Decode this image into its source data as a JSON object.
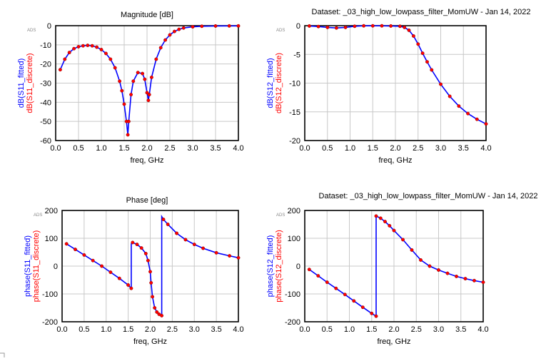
{
  "chart_data": [
    {
      "type": "line",
      "title": "Magnitude [dB]",
      "xlabel": "freq, GHz",
      "ylabel_lines": [
        "dB(S11_fitted)",
        "dB(S11_discrete)"
      ],
      "watermark": "ADS",
      "xlim": [
        0.0,
        4.0
      ],
      "ylim": [
        -60,
        0
      ],
      "xticks": [
        "0.0",
        "0.5",
        "1.0",
        "1.5",
        "2.0",
        "2.5",
        "3.0",
        "3.5",
        "4.0"
      ],
      "yticks": [
        "0",
        "-10",
        "-20",
        "-30",
        "-40",
        "-50",
        "-60"
      ],
      "grid": true,
      "series": [
        {
          "name": "dB(S11_fitted)",
          "color": "#0000ff",
          "style": "line",
          "x": [
            0.1,
            0.2,
            0.3,
            0.4,
            0.5,
            0.6,
            0.7,
            0.8,
            0.9,
            1.0,
            1.1,
            1.2,
            1.3,
            1.4,
            1.45,
            1.5,
            1.55,
            1.58,
            1.6,
            1.65,
            1.7,
            1.8,
            1.9,
            1.95,
            2.0,
            2.03,
            2.05,
            2.1,
            2.2,
            2.3,
            2.4,
            2.5,
            2.6,
            2.7,
            2.8,
            3.0,
            3.2,
            3.5,
            3.8,
            4.0
          ],
          "y": [
            -23,
            -17.5,
            -14,
            -12,
            -11,
            -10.5,
            -10.3,
            -10.5,
            -11.2,
            -12.5,
            -14.5,
            -17.5,
            -22,
            -29,
            -34,
            -41,
            -50,
            -57,
            -50,
            -36,
            -29,
            -24.5,
            -25,
            -28,
            -35,
            -39,
            -36,
            -27,
            -17.5,
            -11.5,
            -7.5,
            -4.8,
            -3,
            -1.9,
            -1.2,
            -0.6,
            -0.3,
            -0.15,
            -0.1,
            -0.1
          ]
        },
        {
          "name": "dB(S11_discrete)",
          "color": "#ff0000",
          "style": "markers",
          "x": [
            0.1,
            0.2,
            0.3,
            0.4,
            0.5,
            0.6,
            0.7,
            0.8,
            0.9,
            1.0,
            1.1,
            1.2,
            1.3,
            1.4,
            1.45,
            1.5,
            1.55,
            1.58,
            1.6,
            1.65,
            1.7,
            1.8,
            1.9,
            1.95,
            2.0,
            2.03,
            2.05,
            2.1,
            2.2,
            2.3,
            2.4,
            2.5,
            2.6,
            2.7,
            2.8,
            3.0,
            3.2,
            3.5,
            3.8,
            4.0
          ],
          "y": [
            -23,
            -17.5,
            -14,
            -12,
            -11,
            -10.5,
            -10.3,
            -10.5,
            -11.2,
            -12.5,
            -14.5,
            -17.5,
            -22,
            -29,
            -34,
            -41,
            -50,
            -57,
            -50,
            -36,
            -29,
            -24.5,
            -25,
            -28,
            -35,
            -39,
            -36,
            -27,
            -17.5,
            -11.5,
            -7.5,
            -4.8,
            -3,
            -1.9,
            -1.2,
            -0.6,
            -0.3,
            -0.15,
            -0.1,
            -0.1
          ]
        }
      ]
    },
    {
      "type": "line",
      "title": "Dataset: _03_high_low_lowpass_filter_MomUW - Jan 14, 2022",
      "xlabel": "freq, GHz",
      "ylabel_lines": [
        "dB(S12_fitted)",
        "dB(S12_discrete)"
      ],
      "watermark": "ADS",
      "xlim": [
        0.0,
        4.0
      ],
      "ylim": [
        -20,
        0
      ],
      "xticks": [
        "0.0",
        "0.5",
        "1.0",
        "1.5",
        "2.0",
        "2.5",
        "3.0",
        "3.5",
        "4.0"
      ],
      "yticks": [
        "0",
        "-5",
        "-10",
        "-15",
        "-20"
      ],
      "grid": true,
      "series": [
        {
          "name": "dB(S12_fitted)",
          "color": "#0000ff",
          "style": "line",
          "x": [
            0.1,
            0.3,
            0.5,
            0.7,
            0.9,
            1.1,
            1.3,
            1.5,
            1.7,
            1.9,
            2.1,
            2.2,
            2.3,
            2.4,
            2.5,
            2.6,
            2.7,
            2.8,
            3.0,
            3.2,
            3.4,
            3.6,
            3.8,
            4.0
          ],
          "y": [
            -0.05,
            -0.15,
            -0.3,
            -0.4,
            -0.3,
            -0.1,
            -0.02,
            -0.02,
            -0.03,
            -0.05,
            -0.1,
            -0.3,
            -0.8,
            -1.8,
            -3.2,
            -4.8,
            -6.3,
            -7.7,
            -10.2,
            -12.3,
            -14,
            -15.3,
            -16.3,
            -17.1
          ]
        },
        {
          "name": "dB(S12_discrete)",
          "color": "#ff0000",
          "style": "markers",
          "x": [
            0.1,
            0.3,
            0.5,
            0.7,
            0.9,
            1.1,
            1.3,
            1.5,
            1.7,
            1.9,
            2.1,
            2.2,
            2.3,
            2.4,
            2.5,
            2.6,
            2.7,
            2.8,
            3.0,
            3.2,
            3.4,
            3.6,
            3.8,
            4.0
          ],
          "y": [
            -0.05,
            -0.15,
            -0.3,
            -0.4,
            -0.3,
            -0.1,
            -0.02,
            -0.02,
            -0.03,
            -0.05,
            -0.1,
            -0.3,
            -0.8,
            -1.8,
            -3.2,
            -4.8,
            -6.3,
            -7.7,
            -10.2,
            -12.3,
            -14,
            -15.3,
            -16.3,
            -17.1
          ]
        }
      ]
    },
    {
      "type": "line",
      "title": "Phase [deg]",
      "xlabel": "freq, GHz",
      "ylabel_lines": [
        "phase(S11_fitted)",
        "phase(S11_discrete)"
      ],
      "watermark": "ADS",
      "xlim": [
        0.0,
        4.0
      ],
      "ylim": [
        -200,
        200
      ],
      "xticks": [
        "0.0",
        "0.5",
        "1.0",
        "1.5",
        "2.0",
        "2.5",
        "3.0",
        "3.5",
        "4.0"
      ],
      "yticks": [
        "200",
        "100",
        "0",
        "-100",
        "-200"
      ],
      "grid": true,
      "series": [
        {
          "name": "phase(S11_fitted)",
          "color": "#0000ff",
          "style": "line",
          "x": [
            0.1,
            0.3,
            0.5,
            0.7,
            0.9,
            1.1,
            1.3,
            1.5,
            1.57,
            1.57,
            1.6,
            1.7,
            1.8,
            1.9,
            1.95,
            2.0,
            2.02,
            2.05,
            2.1,
            2.15,
            2.2,
            2.26,
            2.26,
            2.3,
            2.4,
            2.6,
            2.8,
            3.0,
            3.2,
            3.5,
            3.8,
            4.0
          ],
          "y": [
            80,
            60,
            40,
            20,
            0,
            -22,
            -44,
            -68,
            -80,
            80,
            85,
            78,
            65,
            45,
            20,
            -20,
            -60,
            -110,
            -150,
            -165,
            -173,
            -178,
            178,
            168,
            150,
            118,
            95,
            78,
            64,
            48,
            37,
            30
          ]
        },
        {
          "name": "phase(S11_discrete)",
          "color": "#ff0000",
          "style": "markers",
          "x": [
            0.1,
            0.3,
            0.5,
            0.7,
            0.9,
            1.1,
            1.3,
            1.5,
            1.57,
            1.6,
            1.7,
            1.8,
            1.9,
            1.95,
            2.0,
            2.02,
            2.05,
            2.1,
            2.15,
            2.2,
            2.26,
            2.3,
            2.4,
            2.6,
            2.8,
            3.0,
            3.2,
            3.5,
            3.8,
            4.0
          ],
          "y": [
            80,
            60,
            40,
            20,
            0,
            -22,
            -44,
            -68,
            -80,
            85,
            78,
            65,
            45,
            20,
            -20,
            -60,
            -110,
            -150,
            -165,
            -173,
            -178,
            168,
            150,
            118,
            95,
            78,
            64,
            48,
            37,
            30
          ]
        }
      ]
    },
    {
      "type": "line",
      "title": "Dataset: _03_high_low_lowpass_filter_MomUW - Jan 14, 2022",
      "xlabel": "freq, GHz",
      "ylabel_lines": [
        "phase(S12_fitted)",
        "phase(S12_discrete)"
      ],
      "watermark": "ADS",
      "xlim": [
        0.0,
        4.0
      ],
      "ylim": [
        -200,
        200
      ],
      "xticks": [
        "0.0",
        "0.5",
        "1.0",
        "1.5",
        "2.0",
        "2.5",
        "3.0",
        "3.5",
        "4.0"
      ],
      "yticks": [
        "200",
        "100",
        "0",
        "-100",
        "-200"
      ],
      "grid": true,
      "series": [
        {
          "name": "phase(S12_fitted)",
          "color": "#0000ff",
          "style": "line",
          "x": [
            0.1,
            0.3,
            0.5,
            0.7,
            0.9,
            1.1,
            1.3,
            1.5,
            1.6,
            1.6,
            1.7,
            1.8,
            1.9,
            2.0,
            2.2,
            2.4,
            2.6,
            2.8,
            3.0,
            3.2,
            3.4,
            3.6,
            3.8,
            4.0
          ],
          "y": [
            -12,
            -35,
            -58,
            -80,
            -102,
            -125,
            -148,
            -170,
            -180,
            180,
            172,
            160,
            145,
            128,
            95,
            58,
            22,
            0,
            -14,
            -26,
            -37,
            -45,
            -52,
            -58
          ]
        },
        {
          "name": "phase(S12_discrete)",
          "color": "#ff0000",
          "style": "markers",
          "x": [
            0.1,
            0.3,
            0.5,
            0.7,
            0.9,
            1.1,
            1.3,
            1.5,
            1.6,
            1.6,
            1.7,
            1.8,
            1.9,
            2.0,
            2.2,
            2.4,
            2.6,
            2.8,
            3.0,
            3.2,
            3.4,
            3.6,
            3.8,
            4.0
          ],
          "y": [
            -12,
            -35,
            -58,
            -80,
            -102,
            -125,
            -148,
            -170,
            -180,
            180,
            172,
            160,
            145,
            128,
            95,
            58,
            22,
            0,
            -14,
            -26,
            -37,
            -45,
            -52,
            -58
          ]
        }
      ]
    }
  ]
}
